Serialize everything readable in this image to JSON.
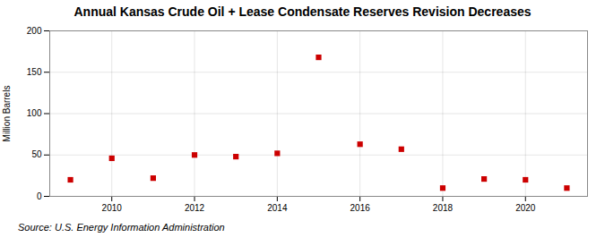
{
  "chart_data": {
    "type": "scatter",
    "title": "Annual Kansas Crude Oil + Lease Condensate Reserves Revision Decreases",
    "ylabel": "Million Barrels",
    "source": "Source: U.S. Energy Information Administration",
    "x": [
      2009,
      2010,
      2011,
      2012,
      2013,
      2014,
      2015,
      2016,
      2017,
      2018,
      2019,
      2020,
      2021
    ],
    "values": [
      20,
      46,
      22,
      50,
      48,
      52,
      168,
      63,
      57,
      10,
      21,
      20,
      10
    ],
    "color": "#cc0000",
    "marker": "square",
    "xlim": [
      2008.5,
      2021.5
    ],
    "ylim": [
      0,
      200
    ],
    "xticks": [
      2010,
      2012,
      2014,
      2016,
      2018,
      2020
    ],
    "yticks": [
      0,
      50,
      100,
      150,
      200
    ],
    "grid": true
  }
}
